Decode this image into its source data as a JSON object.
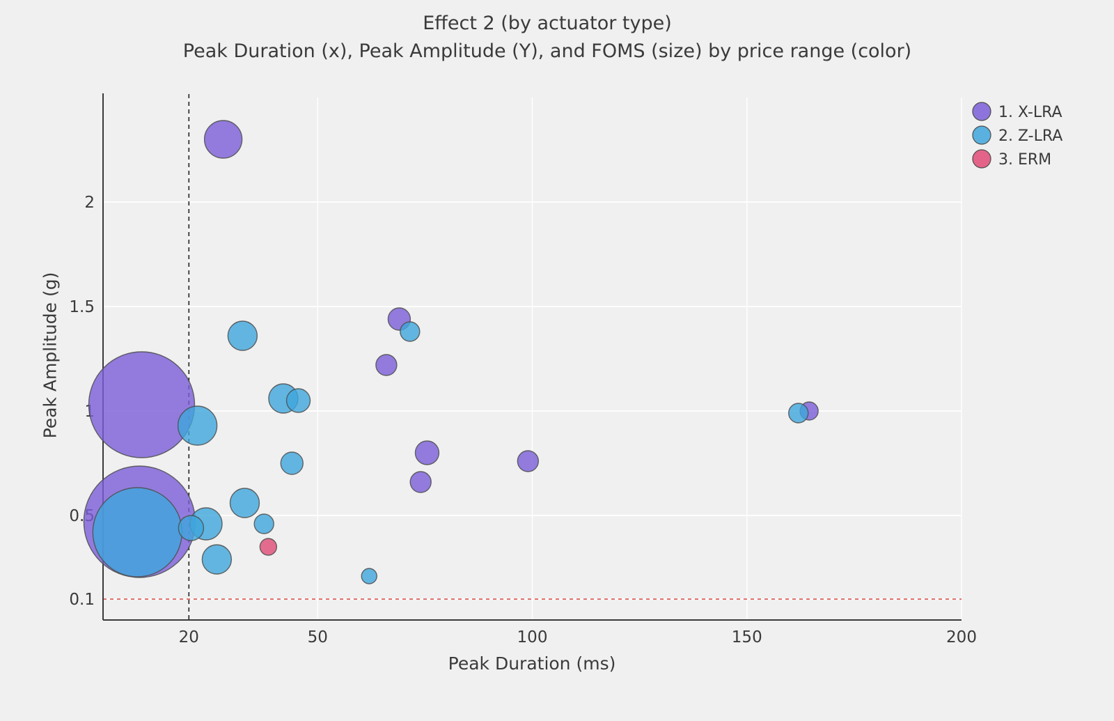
{
  "chart_data": {
    "type": "scatter",
    "subtype": "bubble",
    "title": "Effect 2 (by actuator type)",
    "subtitle": "Peak Duration (x), Peak Amplitude (Y), and FOMS (size) by price range (color)",
    "xlabel": "Peak Duration (ms)",
    "ylabel": "Peak Amplitude (g)",
    "xlim": [
      0,
      200
    ],
    "ylim": [
      0,
      2.5
    ],
    "x_ticks": [
      20,
      50,
      100,
      150,
      200
    ],
    "y_ticks": [
      0.1,
      0.5,
      1,
      1.5,
      2
    ],
    "grid": "on-white",
    "legend_position": "top-right",
    "size_channel": "FOMS (bubble radius in px)",
    "colors": {
      "background": "#f0f0f0",
      "grid": "#ffffff",
      "axis": "#3a3a3a",
      "text": "#3a3a3a",
      "bubble_stroke": "#4d4d4d"
    },
    "reference_lines": [
      {
        "axis": "x",
        "value": 20,
        "style": "dashed",
        "color": "#222222"
      },
      {
        "axis": "y",
        "value": 0.1,
        "style": "dashed",
        "color": "#d9443f"
      }
    ],
    "series": [
      {
        "id": "x-lra",
        "name": "1. X-LRA",
        "color": "#7b5ed8",
        "points": [
          {
            "x": 28,
            "y": 2.3,
            "size": 27
          },
          {
            "x": 9,
            "y": 1.03,
            "size": 76
          },
          {
            "x": 8.5,
            "y": 0.47,
            "size": 80
          },
          {
            "x": 69,
            "y": 1.44,
            "size": 16
          },
          {
            "x": 66,
            "y": 1.22,
            "size": 15
          },
          {
            "x": 75.5,
            "y": 0.8,
            "size": 17
          },
          {
            "x": 74,
            "y": 0.66,
            "size": 15
          },
          {
            "x": 99,
            "y": 0.76,
            "size": 15
          },
          {
            "x": 164.5,
            "y": 1.0,
            "size": 13
          }
        ]
      },
      {
        "id": "z-lra",
        "name": "2. Z-LRA",
        "color": "#3fa6dc",
        "points": [
          {
            "x": 8,
            "y": 0.42,
            "size": 64
          },
          {
            "x": 22,
            "y": 0.93,
            "size": 28
          },
          {
            "x": 32.5,
            "y": 1.36,
            "size": 21
          },
          {
            "x": 42,
            "y": 1.06,
            "size": 21
          },
          {
            "x": 45.5,
            "y": 1.05,
            "size": 17
          },
          {
            "x": 71.5,
            "y": 1.38,
            "size": 14
          },
          {
            "x": 44,
            "y": 0.75,
            "size": 16
          },
          {
            "x": 33,
            "y": 0.56,
            "size": 21
          },
          {
            "x": 37.5,
            "y": 0.46,
            "size": 14
          },
          {
            "x": 24,
            "y": 0.46,
            "size": 23
          },
          {
            "x": 20.5,
            "y": 0.44,
            "size": 18
          },
          {
            "x": 26.5,
            "y": 0.29,
            "size": 21
          },
          {
            "x": 62,
            "y": 0.21,
            "size": 11
          },
          {
            "x": 162,
            "y": 0.99,
            "size": 14
          }
        ]
      },
      {
        "id": "erm",
        "name": "3. ERM",
        "color": "#e04b76",
        "points": [
          {
            "x": 38.5,
            "y": 0.35,
            "size": 12
          }
        ]
      }
    ]
  }
}
